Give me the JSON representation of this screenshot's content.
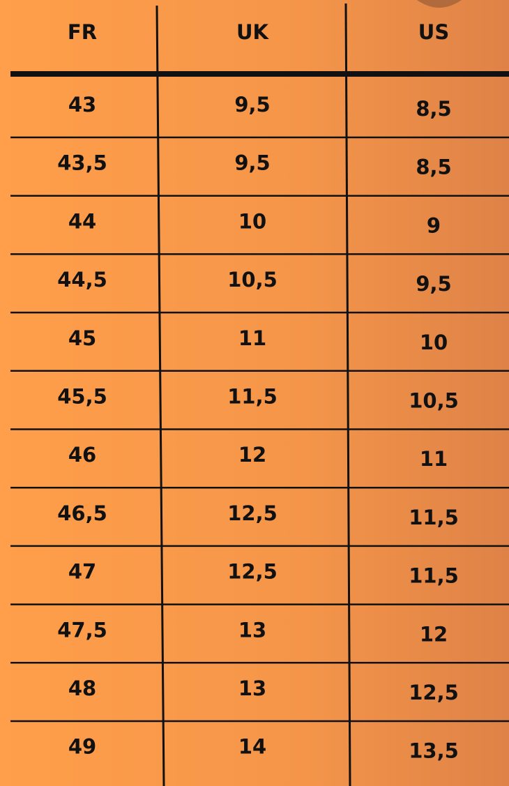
{
  "table": {
    "header": [
      "FR",
      "UK",
      "US"
    ],
    "rows": [
      [
        "43",
        "9,5",
        "8,5"
      ],
      [
        "43,5",
        "9,5",
        "8,5"
      ],
      [
        "44",
        "10",
        "9"
      ],
      [
        "44,5",
        "10,5",
        "9,5"
      ],
      [
        "45",
        "11",
        "10"
      ],
      [
        "45,5",
        "11,5",
        "10,5"
      ],
      [
        "46",
        "12",
        "11"
      ],
      [
        "46,5",
        "12,5",
        "11,5"
      ],
      [
        "47",
        "12,5",
        "11,5"
      ],
      [
        "47,5",
        "13",
        "12"
      ],
      [
        "48",
        "13",
        "12,5"
      ],
      [
        "49",
        "14",
        "13,5"
      ]
    ]
  }
}
